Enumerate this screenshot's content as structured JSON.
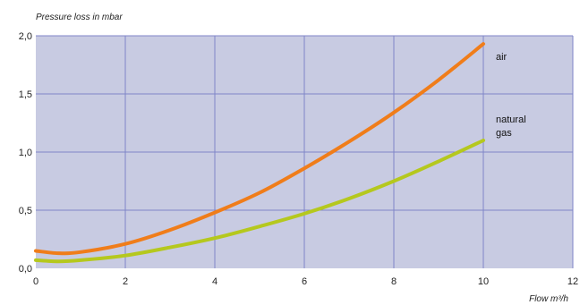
{
  "chart_data": {
    "type": "line",
    "ylabel": "Pressure loss in mbar",
    "xlabel": "Flow m³/h",
    "xlim": [
      0,
      12
    ],
    "ylim": [
      0,
      2.0
    ],
    "x_ticks": [
      "0",
      "2",
      "4",
      "6",
      "8",
      "10",
      "12"
    ],
    "y_ticks": [
      "0,0",
      "0,5",
      "1,0",
      "1,5",
      "2,0"
    ],
    "grid": true,
    "series": [
      {
        "name": "air",
        "color": "#f07d1a",
        "x": [
          0,
          0.5,
          1,
          2,
          3,
          4,
          5,
          6,
          7,
          8,
          9,
          10
        ],
        "y": [
          0.15,
          0.13,
          0.14,
          0.21,
          0.33,
          0.48,
          0.65,
          0.86,
          1.09,
          1.34,
          1.62,
          1.93
        ]
      },
      {
        "name": "natural gas",
        "color": "#b5c81e",
        "x": [
          0,
          0.5,
          1,
          2,
          3,
          4,
          5,
          6,
          7,
          8,
          9,
          10
        ],
        "y": [
          0.07,
          0.06,
          0.07,
          0.11,
          0.18,
          0.26,
          0.36,
          0.47,
          0.6,
          0.75,
          0.92,
          1.1
        ]
      }
    ],
    "series_labels": [
      {
        "lines": [
          "air"
        ]
      },
      {
        "lines": [
          "natural",
          "gas"
        ]
      }
    ],
    "colors": {
      "plot_background": "#c8cbe2",
      "grid": "#7f86c8"
    }
  }
}
